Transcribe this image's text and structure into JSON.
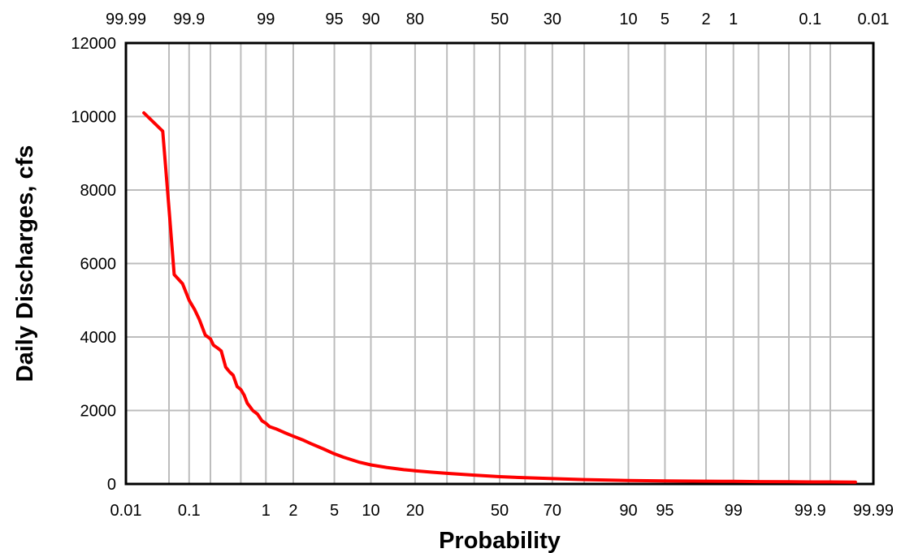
{
  "chart_data": {
    "type": "line",
    "title": "",
    "xlabel": "Probability",
    "ylabel": "Daily Discharges, cfs",
    "x_scale": "normal probability",
    "xlim": [
      0.01,
      99.99
    ],
    "ylim": [
      0,
      12000
    ],
    "grid": true,
    "legend": "none",
    "series_color": "#ff0000",
    "grid_color": "#bdbdbd",
    "x_ticks_bottom": [
      0.01,
      0.1,
      1,
      2,
      5,
      10,
      20,
      50,
      70,
      90,
      95,
      99,
      99.9,
      99.99
    ],
    "x_tick_labels_bottom": [
      "0.01",
      "0.1",
      "1",
      "2",
      "5",
      "10",
      "20",
      "50",
      "70",
      "90",
      "95",
      "99",
      "99.9",
      "99.99"
    ],
    "x_tick_labels_top": [
      "99.99",
      "99.9",
      "99",
      "95",
      "90",
      "80",
      "50",
      "30",
      "10",
      "5",
      "2",
      "1",
      "0.1",
      "0.01"
    ],
    "x_tick_labels_top_positions": [
      0.01,
      0.1,
      1,
      5,
      10,
      20,
      50,
      70,
      90,
      95,
      98,
      99,
      99.9,
      99.99
    ],
    "x_gridlines": [
      0.01,
      0.05,
      0.1,
      0.2,
      0.5,
      1,
      2,
      5,
      10,
      20,
      30,
      40,
      50,
      60,
      70,
      80,
      90,
      95,
      98,
      99,
      99.5,
      99.8,
      99.9,
      99.95,
      99.99
    ],
    "y_ticks": [
      0,
      2000,
      4000,
      6000,
      8000,
      10000,
      12000
    ],
    "y_tick_labels": [
      "0",
      "2000",
      "4000",
      "6000",
      "8000",
      "10000",
      "12000"
    ],
    "series": [
      {
        "x": [
          0.02,
          0.04,
          0.05,
          0.06,
          0.08,
          0.1,
          0.12,
          0.14,
          0.17,
          0.2,
          0.22,
          0.25,
          0.28,
          0.32,
          0.36,
          0.4,
          0.45,
          0.5,
          0.55,
          0.6,
          0.65,
          0.7,
          0.8,
          0.9,
          1.0,
          1.1,
          1.3,
          1.6,
          2.0,
          2.5,
          3.0,
          4.0,
          5.0,
          6.0,
          8.0,
          10,
          13,
          17,
          20,
          25,
          30,
          40,
          50,
          60,
          70,
          80,
          90,
          95,
          98,
          99,
          99.5,
          99.8,
          99.9,
          99.95,
          99.98
        ],
        "values": [
          10100,
          9600,
          7500,
          5700,
          5450,
          5000,
          4750,
          4480,
          4050,
          3950,
          3780,
          3700,
          3620,
          3180,
          3050,
          2960,
          2650,
          2570,
          2420,
          2200,
          2100,
          2000,
          1900,
          1720,
          1650,
          1560,
          1500,
          1400,
          1300,
          1200,
          1100,
          950,
          820,
          730,
          600,
          520,
          450,
          390,
          360,
          320,
          290,
          240,
          200,
          170,
          145,
          120,
          95,
          85,
          75,
          70,
          65,
          60,
          55,
          55,
          50
        ]
      }
    ]
  }
}
